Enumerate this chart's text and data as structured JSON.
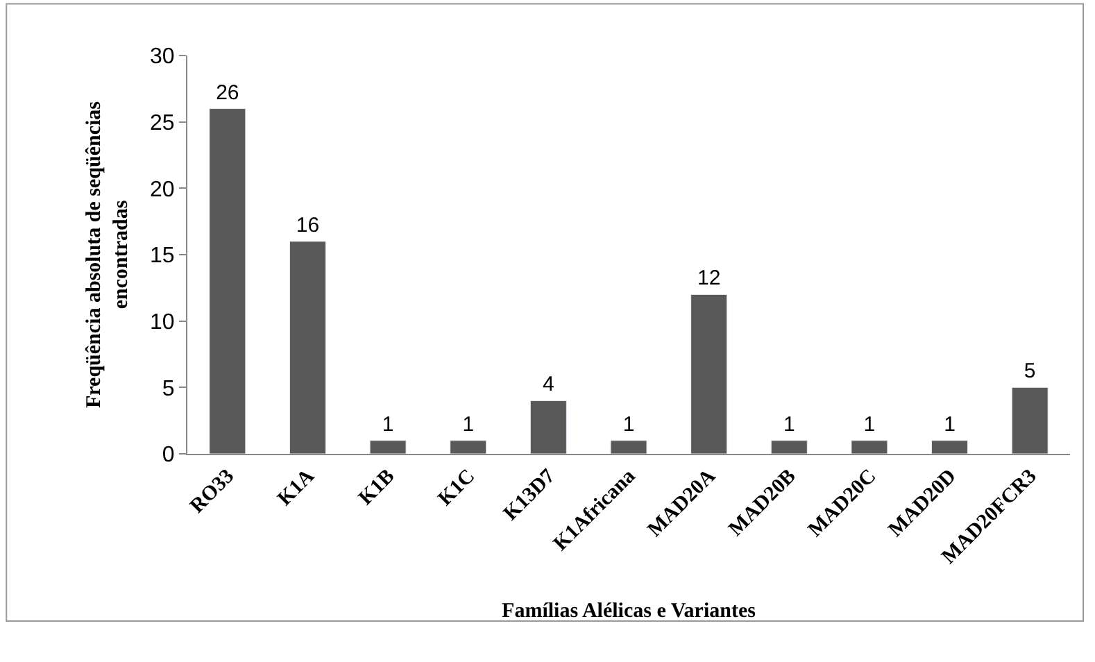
{
  "chart_data": {
    "type": "bar",
    "xlabel": "Famílias Alélicas e Variantes",
    "ylabel": "Freqüência absoluta de seqüências encontradas",
    "categories": [
      "RO33",
      "K1A",
      "K1B",
      "K1C",
      "K13D7",
      "K1Africana",
      "MAD20A",
      "MAD20B",
      "MAD20C",
      "MAD20D",
      "MAD20FCR3"
    ],
    "values": [
      26,
      16,
      1,
      1,
      4,
      1,
      12,
      1,
      1,
      1,
      5
    ],
    "color": "#595959",
    "ylim": [
      0,
      30
    ],
    "yticks": [
      0,
      5,
      10,
      15,
      20,
      25,
      30
    ],
    "legend": false,
    "data_labels": true
  }
}
